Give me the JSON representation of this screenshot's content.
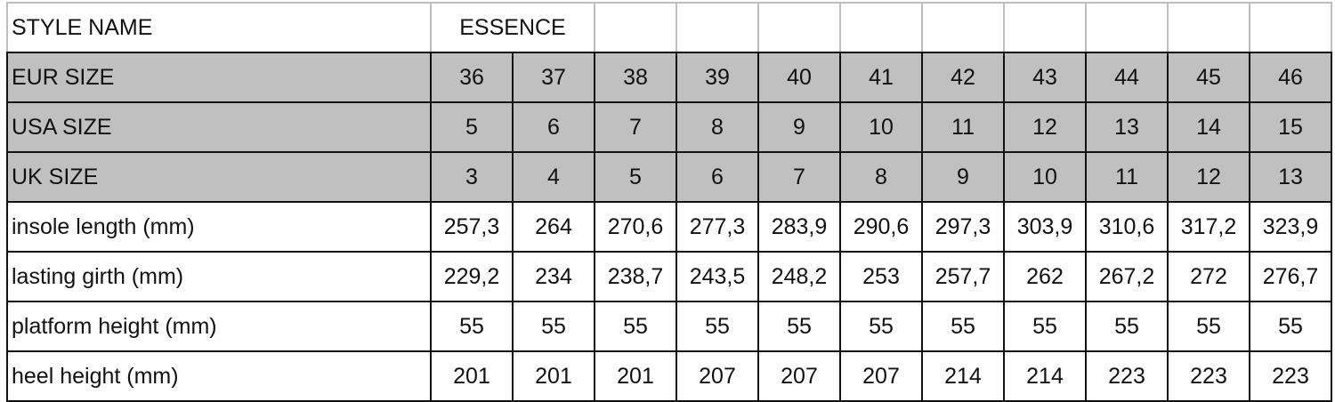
{
  "style_row": {
    "label": "STYLE NAME",
    "value": "ESSENCE"
  },
  "shaded_color": "#c0c0c0",
  "rows": [
    {
      "label": "EUR SIZE",
      "shaded": true,
      "values": [
        "36",
        "37",
        "38",
        "39",
        "40",
        "41",
        "42",
        "43",
        "44",
        "45",
        "46"
      ]
    },
    {
      "label": "USA SIZE",
      "shaded": true,
      "values": [
        "5",
        "6",
        "7",
        "8",
        "9",
        "10",
        "11",
        "12",
        "13",
        "14",
        "15"
      ]
    },
    {
      "label": "UK SIZE",
      "shaded": true,
      "values": [
        "3",
        "4",
        "5",
        "6",
        "7",
        "8",
        "9",
        "10",
        "11",
        "12",
        "13"
      ]
    },
    {
      "label": "insole length (mm)",
      "shaded": false,
      "values": [
        "257,3",
        "264",
        "270,6",
        "277,3",
        "283,9",
        "290,6",
        "297,3",
        "303,9",
        "310,6",
        "317,2",
        "323,9"
      ]
    },
    {
      "label": "lasting girth (mm)",
      "shaded": false,
      "values": [
        "229,2",
        "234",
        "238,7",
        "243,5",
        "248,2",
        "253",
        "257,7",
        "262",
        "267,2",
        "272",
        "276,7"
      ]
    },
    {
      "label": "platform height (mm)",
      "shaded": false,
      "values": [
        "55",
        "55",
        "55",
        "55",
        "55",
        "55",
        "55",
        "55",
        "55",
        "55",
        "55"
      ]
    },
    {
      "label": "heel height (mm)",
      "shaded": false,
      "values": [
        "201",
        "201",
        "201",
        "207",
        "207",
        "207",
        "214",
        "214",
        "223",
        "223",
        "223"
      ]
    }
  ]
}
